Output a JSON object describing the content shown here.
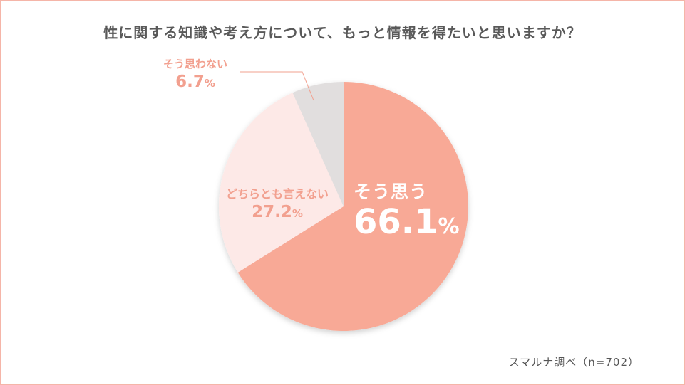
{
  "title": "性に関する知識や考え方について、もっと情報を得たいと思いますか？",
  "source": "スマルナ調べ（n=702）",
  "colors": {
    "border": "#f5b5a8",
    "yes": "#f8a996",
    "neither": "#fde9e7",
    "no": "#e1dede",
    "label": "#f2a08f"
  },
  "chart_data": {
    "type": "pie",
    "n": 702,
    "start": "12 o'clock",
    "direction": "clockwise",
    "slices": [
      {
        "label": "そう思う",
        "value": 66.1,
        "value_text": "66.1",
        "unit": "%",
        "color": "#f8a996"
      },
      {
        "label": "どちらとも言えない",
        "value": 27.2,
        "value_text": "27.2",
        "unit": "%",
        "color": "#fde9e7"
      },
      {
        "label": "そう思わない",
        "value": 6.7,
        "value_text": "6.7",
        "unit": "%",
        "color": "#e1dede"
      }
    ]
  }
}
